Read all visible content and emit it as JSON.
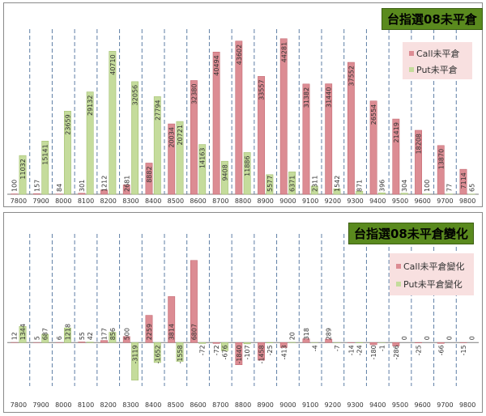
{
  "colors": {
    "call": "#dc8c93",
    "put": "#c5dc9c",
    "call_edge": "#c0606a",
    "put_edge": "#9cbb66",
    "title_bg": "#5a8a1e",
    "legend_bg": "#f8e0e0",
    "grid": "#5f7fa6"
  },
  "chart_data": [
    {
      "type": "bar",
      "title": "台指選08未平倉",
      "categories": [
        "7800",
        "7900",
        "8000",
        "8100",
        "8200",
        "8300",
        "8400",
        "8500",
        "8600",
        "8700",
        "8800",
        "8900",
        "9000",
        "9100",
        "9200",
        "9300",
        "9400",
        "9500",
        "9600",
        "9700",
        "9800"
      ],
      "series": [
        {
          "name": "Call未平倉",
          "values": [
            100,
            157,
            84,
            301,
            1212,
            2681,
            8882,
            20034,
            32380,
            40494,
            43602,
            33557,
            44281,
            31382,
            31440,
            37552,
            26554,
            21419,
            18208,
            13870,
            7114
          ]
        },
        {
          "name": "Put未平倉",
          "values": [
            11032,
            15141,
            23659,
            29132,
            40710,
            32056,
            27794,
            20721,
            14163,
            9408,
            11886,
            5577,
            6371,
            2311,
            1542,
            871,
            396,
            304,
            100,
            77,
            65
          ]
        }
      ],
      "ylim": [
        0,
        47000
      ],
      "legend": "right"
    },
    {
      "type": "bar",
      "title": "台指選08未平倉變化",
      "categories": [
        "7800",
        "7900",
        "8000",
        "8100",
        "8200",
        "8300",
        "8400",
        "8500",
        "8600",
        "8700",
        "8800",
        "8900",
        "9000",
        "9100",
        "9200",
        "9300",
        "9400",
        "9500",
        "9600",
        "9700",
        "9800"
      ],
      "series": [
        {
          "name": "Call未平倉變化",
          "values": [
            12,
            5,
            6,
            55,
            177,
            500,
            2259,
            3814,
            6807,
            -72,
            -1840,
            -1458,
            -413,
            318,
            289,
            -14,
            -180,
            -286,
            -25,
            -66,
            -15
          ]
        },
        {
          "name": "Put未平倉變化",
          "values": [
            1344,
            687,
            1218,
            42,
            856,
            -3119,
            -1652,
            -1558,
            -72,
            -676,
            -107,
            -25,
            20,
            -4,
            -7,
            -24,
            -1,
            0,
            0,
            0,
            0
          ]
        }
      ],
      "ylim": [
        -3600,
        9000
      ],
      "legend": "right"
    }
  ]
}
